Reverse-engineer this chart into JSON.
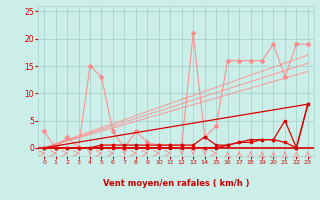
{
  "bg_color": "#cceee8",
  "grid_color": "#a8d4ce",
  "line_color_light": "#ff8888",
  "line_color_dark": "#dd0000",
  "xlabel": "Vent moyen/en rafales ( km/h )",
  "xlabel_color": "#cc0000",
  "tick_color": "#cc0000",
  "ylim": [
    -1.5,
    26
  ],
  "xlim": [
    -0.5,
    23.5
  ],
  "yticks": [
    0,
    5,
    10,
    15,
    20,
    25
  ],
  "xticks": [
    0,
    1,
    2,
    3,
    4,
    5,
    6,
    7,
    8,
    9,
    10,
    11,
    12,
    13,
    14,
    15,
    16,
    17,
    18,
    19,
    20,
    21,
    22,
    23
  ],
  "series_light": {
    "x": [
      0,
      1,
      2,
      3,
      4,
      5,
      6,
      7,
      8,
      9,
      10,
      11,
      12,
      13,
      14,
      15,
      16,
      17,
      18,
      19,
      20,
      21,
      22,
      23
    ],
    "y": [
      3,
      0,
      2,
      0,
      15,
      13,
      3,
      0,
      3,
      1,
      0.5,
      0.5,
      0.5,
      21,
      2,
      4,
      16,
      16,
      16,
      16,
      19,
      13,
      19,
      19
    ]
  },
  "trend_light_1": {
    "x": [
      0,
      23
    ],
    "y": [
      0,
      17
    ]
  },
  "trend_light_2": {
    "x": [
      0,
      23
    ],
    "y": [
      0,
      15.5
    ]
  },
  "trend_light_3": {
    "x": [
      0,
      23
    ],
    "y": [
      0,
      14
    ]
  },
  "series_dark_upper": {
    "x": [
      0,
      1,
      2,
      3,
      4,
      5,
      6,
      7,
      8,
      9,
      10,
      11,
      12,
      13,
      14,
      15,
      16,
      17,
      18,
      19,
      20,
      21,
      22,
      23
    ],
    "y": [
      0,
      0,
      0,
      0,
      0,
      0,
      0,
      0,
      0,
      0,
      0,
      0,
      0,
      0,
      0,
      0,
      0.5,
      1,
      1,
      1.5,
      1.5,
      5,
      0,
      8
    ]
  },
  "series_dark_lower": {
    "x": [
      0,
      1,
      2,
      3,
      4,
      5,
      6,
      7,
      8,
      9,
      10,
      11,
      12,
      13,
      14,
      15,
      16,
      17,
      18,
      19,
      20,
      21,
      22,
      23
    ],
    "y": [
      0,
      0,
      0,
      0,
      0,
      0.5,
      0.5,
      0.5,
      0.5,
      0.5,
      0.5,
      0.5,
      0.5,
      0.5,
      2,
      0.5,
      0.5,
      1,
      1.5,
      1.5,
      1.5,
      1,
      0,
      8
    ]
  },
  "trend_dark": {
    "x": [
      0,
      23
    ],
    "y": [
      0,
      8
    ]
  },
  "arrows": {
    "x": [
      0,
      1,
      2,
      3,
      4,
      5,
      6,
      7,
      8,
      9,
      10,
      11,
      12,
      13,
      14,
      15,
      16,
      17,
      18,
      19,
      20,
      21,
      22,
      23
    ],
    "dirs": [
      "E",
      "E",
      "E",
      "E",
      "S",
      "E",
      "E",
      "S",
      "E",
      "E",
      "E",
      "E",
      "S",
      "S",
      "S",
      "E",
      "N",
      "N",
      "N",
      "N",
      "N",
      "N",
      "N",
      "N"
    ]
  }
}
